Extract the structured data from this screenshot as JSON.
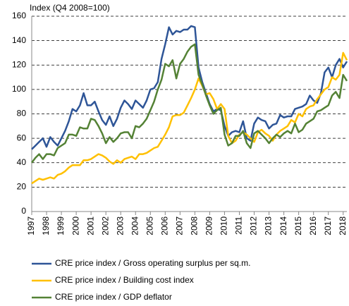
{
  "chart_data": {
    "type": "line",
    "y_axis_label": "Index (Q4 2008=100)",
    "x": [
      1997,
      1997.25,
      1997.5,
      1997.75,
      1998,
      1998.25,
      1998.5,
      1998.75,
      1999,
      1999.25,
      1999.5,
      1999.75,
      2000,
      2000.25,
      2000.5,
      2000.75,
      2001,
      2001.25,
      2001.5,
      2001.75,
      2002,
      2002.25,
      2002.5,
      2002.75,
      2003,
      2003.25,
      2003.5,
      2003.75,
      2004,
      2004.25,
      2004.5,
      2004.75,
      2005,
      2005.25,
      2005.5,
      2005.75,
      2006,
      2006.25,
      2006.5,
      2006.75,
      2007,
      2007.25,
      2007.5,
      2007.75,
      2008,
      2008.25,
      2008.5,
      2008.75,
      2009,
      2009.25,
      2009.5,
      2009.75,
      2010,
      2010.25,
      2010.5,
      2010.75,
      2011,
      2011.25,
      2011.5,
      2011.75,
      2012,
      2012.25,
      2012.5,
      2012.75,
      2013,
      2013.25,
      2013.5,
      2013.75,
      2014,
      2014.25,
      2014.5,
      2014.75,
      2015,
      2015.25,
      2015.5,
      2015.75,
      2016,
      2016.25,
      2016.5,
      2016.75,
      2017,
      2017.25,
      2017.5,
      2017.75,
      2018,
      2018.25
    ],
    "series": [
      {
        "name": "CRE price index / Gross operating surplus per sq.m.",
        "color": "#2e5597",
        "values": [
          51,
          54,
          57,
          60,
          53,
          61,
          57,
          54,
          60,
          66,
          74,
          84,
          82,
          87,
          97,
          87,
          87,
          90,
          82,
          75,
          71,
          78,
          70,
          76,
          85,
          91,
          88,
          84,
          91,
          88,
          85,
          91,
          100,
          101,
          106,
          125,
          137,
          151,
          145,
          148,
          147,
          149,
          149,
          152,
          151,
          118,
          106,
          97,
          88,
          82,
          84,
          83,
          70,
          62,
          65,
          66,
          65,
          74,
          60,
          58,
          72,
          77,
          75,
          74,
          68,
          71,
          72,
          79,
          77,
          78,
          78,
          84,
          85,
          86,
          88,
          95,
          91,
          89,
          97,
          114,
          118,
          110,
          120,
          125,
          118,
          123
        ]
      },
      {
        "name": "CRE price index / Building cost index",
        "color": "#ffc000",
        "values": [
          23,
          25,
          27,
          26,
          27,
          28,
          27,
          30,
          31,
          33,
          36,
          38,
          38,
          38,
          42,
          42,
          43,
          45,
          47,
          46,
          44,
          41,
          39,
          42,
          40,
          43,
          44,
          45,
          43,
          47,
          47,
          48,
          50,
          52,
          53,
          58,
          63,
          69,
          78,
          79,
          79,
          81,
          87,
          93,
          100,
          109,
          103,
          96,
          97,
          92,
          84,
          88,
          84,
          62,
          56,
          58,
          63,
          65,
          63,
          60,
          57,
          65,
          67,
          64,
          62,
          58,
          63,
          66,
          68,
          70,
          75,
          73,
          80,
          78,
          84,
          86,
          87,
          92,
          96,
          100,
          102,
          110,
          108,
          112,
          130,
          124
        ]
      },
      {
        "name": "CRE price index / GDP deflator",
        "color": "#548235",
        "values": [
          40,
          44,
          47,
          43,
          47,
          47,
          46,
          52,
          54,
          56,
          63,
          63,
          62,
          69,
          68,
          68,
          76,
          75,
          70,
          64,
          56,
          61,
          57,
          60,
          64,
          65,
          65,
          60,
          70,
          69,
          72,
          76,
          83,
          90,
          100,
          108,
          121,
          119,
          124,
          109,
          121,
          125,
          131,
          135,
          137,
          112,
          104,
          95,
          87,
          80,
          83,
          85,
          63,
          54,
          56,
          62,
          62,
          66,
          56,
          52,
          64,
          66,
          63,
          60,
          56,
          60,
          63,
          61,
          64,
          66,
          64,
          72,
          65,
          67,
          72,
          74,
          76,
          82,
          83,
          85,
          87,
          95,
          98,
          93,
          112,
          107
        ]
      }
    ],
    "xlim": [
      1997,
      2018.25
    ],
    "xticks": [
      1997,
      1998,
      1999,
      2000,
      2001,
      2002,
      2003,
      2004,
      2005,
      2006,
      2007,
      2008,
      2009,
      2010,
      2011,
      2012,
      2013,
      2014,
      2015,
      2016,
      2017,
      2018
    ],
    "ylim": [
      0,
      160
    ],
    "yticks": [
      0,
      20,
      40,
      60,
      80,
      100,
      120,
      140,
      160
    ],
    "grid": true
  }
}
